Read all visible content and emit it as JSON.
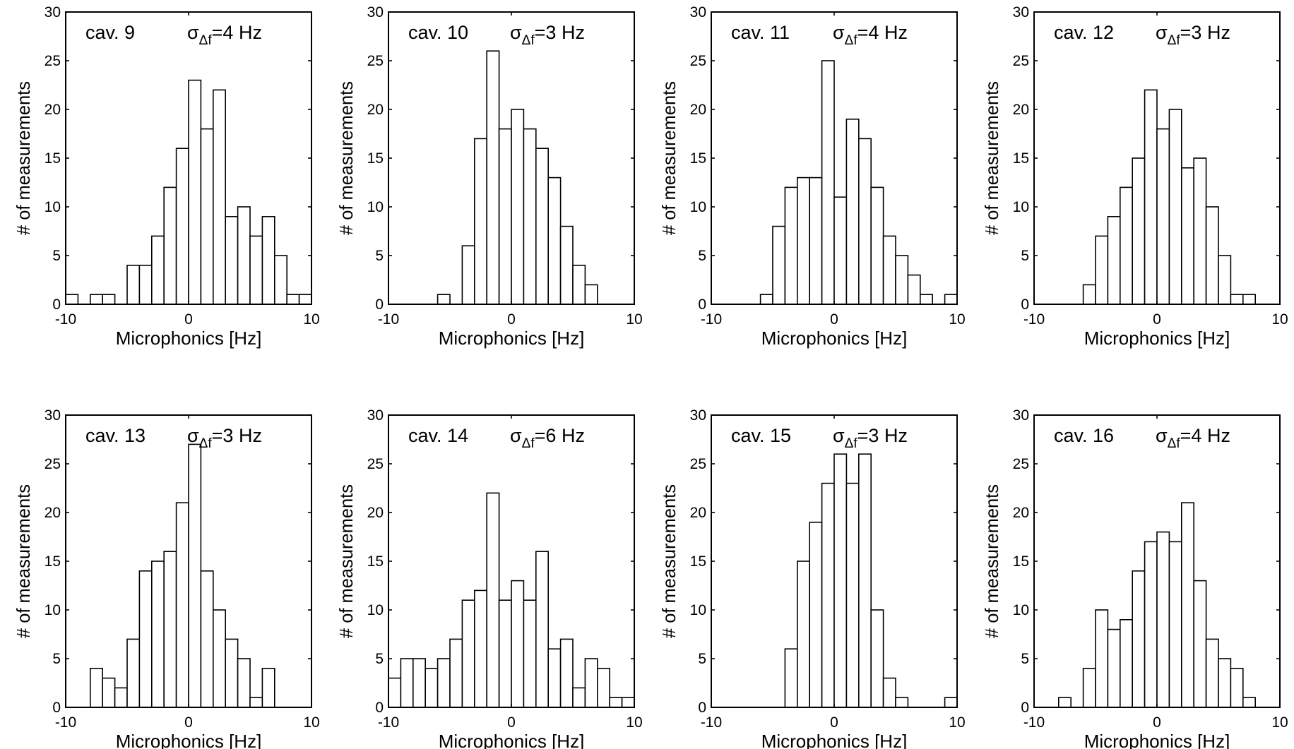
{
  "figure": {
    "background": "#ffffff",
    "bar_fill": "#ffffff",
    "bar_edge": "#000000"
  },
  "chart_data": [
    {
      "type": "bar",
      "cavity_label": "cav. 9",
      "sigma_symbol": "σ",
      "sigma_subscript": "Δf",
      "sigma_value": "=4 Hz",
      "xlabel": "Microphonics [Hz]",
      "ylabel": "# of measurements",
      "xlim": [
        -10,
        10
      ],
      "ylim": [
        0,
        30
      ],
      "xticks": [
        -10,
        0,
        10
      ],
      "yticks": [
        0,
        5,
        10,
        15,
        20,
        25,
        30
      ],
      "bin_edges_start": -10,
      "bin_width": 1,
      "values": [
        1,
        0,
        1,
        1,
        0,
        4,
        4,
        7,
        12,
        16,
        23,
        18,
        22,
        9,
        10,
        7,
        9,
        5,
        1,
        1
      ]
    },
    {
      "type": "bar",
      "cavity_label": "cav. 10",
      "sigma_symbol": "σ",
      "sigma_subscript": "Δf",
      "sigma_value": "=3 Hz",
      "xlabel": "Microphonics [Hz]",
      "ylabel": "# of measurements",
      "xlim": [
        -10,
        10
      ],
      "ylim": [
        0,
        30
      ],
      "xticks": [
        -10,
        0,
        10
      ],
      "yticks": [
        0,
        5,
        10,
        15,
        20,
        25,
        30
      ],
      "bin_edges_start": -10,
      "bin_width": 1,
      "values": [
        0,
        0,
        0,
        0,
        1,
        0,
        6,
        17,
        26,
        18,
        20,
        18,
        16,
        13,
        8,
        4,
        2,
        0,
        0,
        0
      ]
    },
    {
      "type": "bar",
      "cavity_label": "cav. 11",
      "sigma_symbol": "σ",
      "sigma_subscript": "Δf",
      "sigma_value": "=4 Hz",
      "xlabel": "Microphonics [Hz]",
      "ylabel": "# of measurements",
      "xlim": [
        -10,
        10
      ],
      "ylim": [
        0,
        30
      ],
      "xticks": [
        -10,
        0,
        10
      ],
      "yticks": [
        0,
        5,
        10,
        15,
        20,
        25,
        30
      ],
      "bin_edges_start": -10,
      "bin_width": 1,
      "values": [
        0,
        0,
        0,
        0,
        1,
        8,
        12,
        13,
        13,
        25,
        11,
        19,
        17,
        12,
        7,
        5,
        3,
        1,
        0,
        1
      ]
    },
    {
      "type": "bar",
      "cavity_label": "cav. 12",
      "sigma_symbol": "σ",
      "sigma_subscript": "Δf",
      "sigma_value": "=3 Hz",
      "xlabel": "Microphonics [Hz]",
      "ylabel": "# of measurements",
      "xlim": [
        -10,
        10
      ],
      "ylim": [
        0,
        30
      ],
      "xticks": [
        -10,
        0,
        10
      ],
      "yticks": [
        0,
        5,
        10,
        15,
        20,
        25,
        30
      ],
      "bin_edges_start": -10,
      "bin_width": 1,
      "values": [
        0,
        0,
        0,
        0,
        2,
        7,
        9,
        12,
        15,
        22,
        18,
        20,
        14,
        15,
        10,
        5,
        1,
        1,
        0,
        0
      ]
    },
    {
      "type": "bar",
      "cavity_label": "cav. 13",
      "sigma_symbol": "σ",
      "sigma_subscript": "Δf",
      "sigma_value": "=3 Hz",
      "xlabel": "Microphonics [Hz]",
      "ylabel": "# of measurements",
      "xlim": [
        -10,
        10
      ],
      "ylim": [
        0,
        30
      ],
      "xticks": [
        -10,
        0,
        10
      ],
      "yticks": [
        0,
        5,
        10,
        15,
        20,
        25,
        30
      ],
      "bin_edges_start": -10,
      "bin_width": 1,
      "values": [
        0,
        0,
        4,
        3,
        2,
        7,
        14,
        15,
        16,
        21,
        27,
        14,
        10,
        7,
        5,
        1,
        4,
        0,
        0,
        0
      ]
    },
    {
      "type": "bar",
      "cavity_label": "cav. 14",
      "sigma_symbol": "σ",
      "sigma_subscript": "Δf",
      "sigma_value": "=6 Hz",
      "xlabel": "Microphonics [Hz]",
      "ylabel": "# of measurements",
      "xlim": [
        -10,
        10
      ],
      "ylim": [
        0,
        30
      ],
      "xticks": [
        -10,
        0,
        10
      ],
      "yticks": [
        0,
        5,
        10,
        15,
        20,
        25,
        30
      ],
      "bin_edges_start": -10,
      "bin_width": 1,
      "values": [
        3,
        5,
        5,
        4,
        5,
        7,
        11,
        12,
        22,
        11,
        13,
        11,
        16,
        6,
        7,
        2,
        5,
        4,
        1,
        1
      ]
    },
    {
      "type": "bar",
      "cavity_label": "cav. 15",
      "sigma_symbol": "σ",
      "sigma_subscript": "Δf",
      "sigma_value": "=3 Hz",
      "xlabel": "Microphonics [Hz]",
      "ylabel": "# of measurements",
      "xlim": [
        -10,
        10
      ],
      "ylim": [
        0,
        30
      ],
      "xticks": [
        -10,
        0,
        10
      ],
      "yticks": [
        0,
        5,
        10,
        15,
        20,
        25,
        30
      ],
      "bin_edges_start": -10,
      "bin_width": 1,
      "values": [
        0,
        0,
        0,
        0,
        0,
        0,
        6,
        15,
        19,
        23,
        26,
        23,
        26,
        10,
        3,
        1,
        0,
        0,
        0,
        1
      ]
    },
    {
      "type": "bar",
      "cavity_label": "cav. 16",
      "sigma_symbol": "σ",
      "sigma_subscript": "Δf",
      "sigma_value": "=4 Hz",
      "xlabel": "Microphonics [Hz]",
      "ylabel": "# of measurements",
      "xlim": [
        -10,
        10
      ],
      "ylim": [
        0,
        30
      ],
      "xticks": [
        -10,
        0,
        10
      ],
      "yticks": [
        0,
        5,
        10,
        15,
        20,
        25,
        30
      ],
      "bin_edges_start": -10,
      "bin_width": 1,
      "values": [
        0,
        0,
        1,
        0,
        4,
        10,
        8,
        9,
        14,
        17,
        18,
        17,
        21,
        13,
        7,
        5,
        4,
        1,
        0,
        0
      ]
    }
  ]
}
